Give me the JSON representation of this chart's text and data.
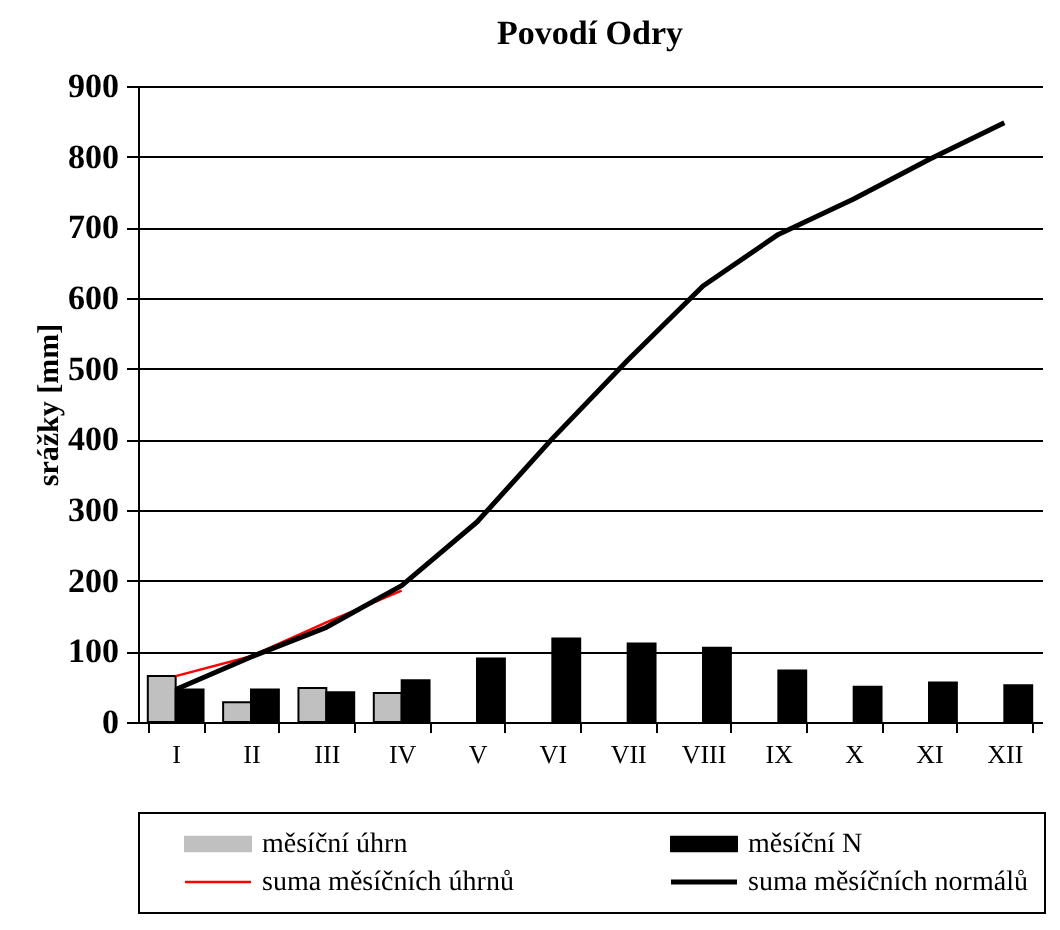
{
  "chart_data": {
    "type": "bar",
    "title": "Povodí Odry",
    "ylabel": "srážky [mm]",
    "categories": [
      "I",
      "II",
      "III",
      "IV",
      "V",
      "VI",
      "VII",
      "VIII",
      "IX",
      "X",
      "XI",
      "XII"
    ],
    "series": [
      {
        "name": "měsíční úhrn",
        "color": "#c0c0c0",
        "values": [
          65,
          28,
          48,
          41,
          null,
          null,
          null,
          null,
          null,
          null,
          null,
          null
        ]
      },
      {
        "name": "měsíční N",
        "color": "#000000",
        "values": [
          46,
          46,
          42,
          59,
          90,
          118,
          111,
          105,
          73,
          50,
          56,
          52
        ]
      },
      {
        "name": "suma měsíčních úhrnů",
        "type": "line",
        "color": "#ff0000",
        "values": [
          65,
          93,
          141,
          186,
          null,
          null,
          null,
          null,
          null,
          null,
          null,
          null
        ]
      },
      {
        "name": "suma měsíčních normálů",
        "type": "line",
        "color": "#000000",
        "values": [
          46,
          92,
          134,
          193,
          283,
          401,
          512,
          617,
          690,
          740,
          796,
          848
        ]
      }
    ],
    "ylim": [
      0,
      900
    ],
    "yticks": [
      0,
      100,
      200,
      300,
      400,
      500,
      600,
      700,
      800,
      900
    ],
    "grid": "y",
    "legend": "bottom"
  }
}
